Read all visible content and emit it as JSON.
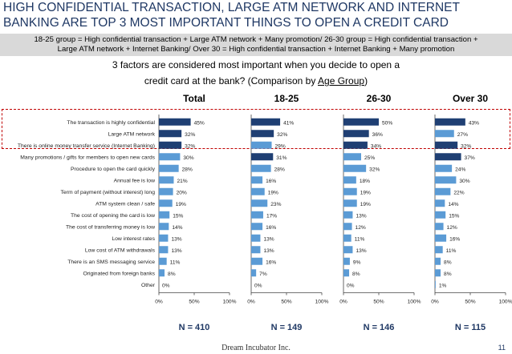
{
  "header": {
    "title_line1": "HIGH CONFIDENTIAL TRANSACTION, LARGE ATM NETWORK AND INTERNET",
    "title_line2": "BANKING ARE TOP 3 MOST IMPORTANT THINGS TO OPEN A CREDIT CARD",
    "subtitle_line1": "18-25 group = High confidential transaction + Large ATM network + Many promotion/ 26-30 group = High confidential transaction +",
    "subtitle_line2": "Large ATM network + Internet Banking/ Over 30 = High confidential transaction + Internet Banking + Many promotion"
  },
  "question": {
    "line1": "3 factors are considered most important when you decide to open a",
    "line2_prefix": "credit card at the bank? (Comparison by ",
    "line2_link": "Age Group",
    "line2_suffix": ")"
  },
  "footer": {
    "company": "Dream Incubator Inc.",
    "page": "11"
  },
  "colors": {
    "dark": "#1F3F73",
    "light": "#5B9BD5",
    "title": "#1F3864",
    "highlight": "#c00000"
  },
  "chart_data": {
    "type": "bar",
    "orientation": "horizontal",
    "categories": [
      "The transaction is highly confidential",
      "Large ATM network",
      "There is online money transfer service (Internet Banking)",
      "Many promotions / gifts for members to open new cards",
      "Procedure to open the card quickly",
      "Annual fee is low",
      "Term of payment (without interest) long",
      "ATM system clean / safe",
      "The cost of opening the card is low",
      "The cost of transferring money is low",
      "Low interest rates",
      "Low cost of ATM withdrawals",
      "There is an SMS messaging service",
      "Originated from foreign banks",
      "Other"
    ],
    "xlim": [
      0,
      100
    ],
    "x_ticks": [
      "0%",
      "50%",
      "100%"
    ],
    "grid": false,
    "series": [
      {
        "name": "Total",
        "n_label": "N = 410",
        "values": [
          45,
          32,
          32,
          30,
          28,
          21,
          20,
          19,
          15,
          14,
          13,
          13,
          11,
          8,
          0
        ],
        "labels": [
          "45%",
          "32%",
          "32%",
          "30%",
          "28%",
          "21%",
          "20%",
          "19%",
          "15%",
          "14%",
          "13%",
          "13%",
          "11%",
          "8%",
          "0%"
        ]
      },
      {
        "name": "18-25",
        "n_label": "N = 149",
        "values": [
          41,
          32,
          29,
          31,
          28,
          16,
          19,
          23,
          17,
          16,
          13,
          13,
          16,
          7,
          0
        ],
        "labels": [
          "41%",
          "32%",
          "29%",
          "31%",
          "28%",
          "16%",
          "19%",
          "23%",
          "17%",
          "16%",
          "13%",
          "13%",
          "16%",
          "7%",
          "0%"
        ]
      },
      {
        "name": "26-30",
        "n_label": "N = 146",
        "values": [
          50,
          36,
          34,
          25,
          32,
          18,
          19,
          19,
          13,
          12,
          11,
          13,
          9,
          8,
          0
        ],
        "labels": [
          "50%",
          "36%",
          "34%",
          "25%",
          "32%",
          "18%",
          "19%",
          "19%",
          "13%",
          "12%",
          "11%",
          "13%",
          "9%",
          "8%",
          "0%"
        ]
      },
      {
        "name": "Over 30",
        "n_label": "N = 115",
        "values": [
          43,
          27,
          32,
          37,
          24,
          30,
          22,
          14,
          15,
          12,
          16,
          11,
          8,
          8,
          1
        ],
        "labels": [
          "43%",
          "27%",
          "32%",
          "37%",
          "24%",
          "30%",
          "22%",
          "14%",
          "15%",
          "12%",
          "16%",
          "11%",
          "8%",
          "8%",
          "1%"
        ]
      }
    ],
    "highlights": {
      "Total": [
        0,
        1,
        2
      ],
      "18-25": [
        0,
        1,
        3
      ],
      "26-30": [
        0,
        1,
        2
      ],
      "Over 30": [
        0,
        2,
        3
      ]
    }
  }
}
